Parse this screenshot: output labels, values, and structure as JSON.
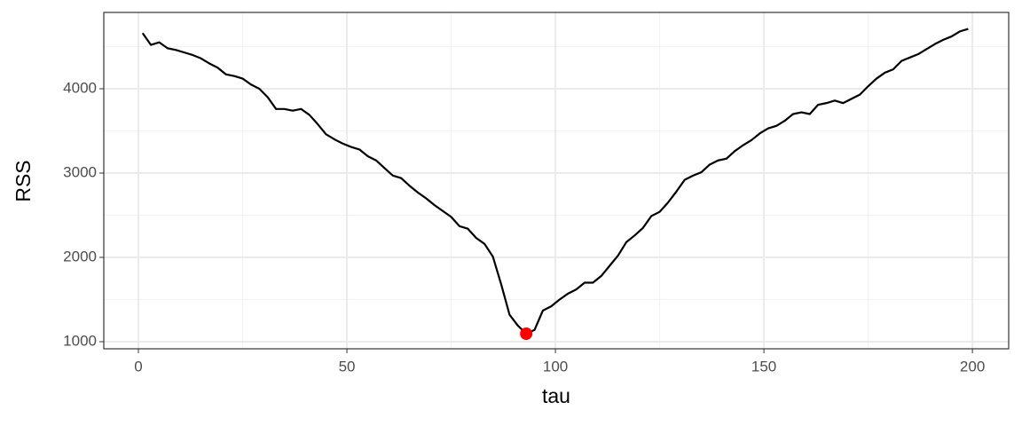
{
  "chart_data": {
    "type": "line",
    "x_label": "tau",
    "y_label": "RSS",
    "x": [
      1,
      3,
      5,
      7,
      9,
      11,
      13,
      15,
      17,
      19,
      21,
      23,
      25,
      27,
      29,
      31,
      33,
      35,
      37,
      39,
      41,
      43,
      45,
      47,
      49,
      51,
      53,
      55,
      57,
      59,
      61,
      63,
      65,
      67,
      69,
      71,
      73,
      75,
      77,
      79,
      81,
      83,
      85,
      87,
      89,
      91,
      93,
      95,
      97,
      99,
      101,
      103,
      105,
      107,
      109,
      111,
      113,
      115,
      117,
      119,
      121,
      123,
      125,
      127,
      129,
      131,
      133,
      135,
      137,
      139,
      141,
      143,
      145,
      147,
      149,
      151,
      153,
      155,
      157,
      159,
      161,
      163,
      165,
      167,
      169,
      171,
      173,
      175,
      177,
      179,
      181,
      183,
      185,
      187,
      189,
      191,
      193,
      195,
      197,
      199
    ],
    "series": [
      {
        "color": "#000000",
        "values": [
          4660,
          4520,
          4550,
          4480,
          4460,
          4430,
          4400,
          4360,
          4300,
          4250,
          4170,
          4150,
          4120,
          4050,
          4000,
          3900,
          3760,
          3760,
          3740,
          3760,
          3690,
          3580,
          3460,
          3400,
          3350,
          3310,
          3280,
          3200,
          3150,
          3060,
          2970,
          2940,
          2850,
          2770,
          2700,
          2620,
          2550,
          2480,
          2370,
          2340,
          2230,
          2160,
          2010,
          1680,
          1320,
          1190,
          1095,
          1140,
          1370,
          1420,
          1500,
          1570,
          1620,
          1700,
          1700,
          1780,
          1900,
          2020,
          2180,
          2260,
          2350,
          2490,
          2540,
          2650,
          2780,
          2920,
          2970,
          3010,
          3100,
          3150,
          3170,
          3260,
          3330,
          3390,
          3470,
          3530,
          3560,
          3620,
          3700,
          3720,
          3700,
          3810,
          3830,
          3860,
          3830,
          3880,
          3930,
          4030,
          4120,
          4190,
          4230,
          4330,
          4370,
          4410,
          4470,
          4530,
          4580,
          4620,
          4680,
          4710
        ]
      }
    ],
    "point": {
      "color": "#ff0000",
      "x": 93,
      "value": 1095
    },
    "xlim": [
      -8.3,
      208.7
    ],
    "ylim": [
      916,
      4905
    ],
    "xticks": [
      0,
      50,
      100,
      150,
      200
    ],
    "yticks": [
      1000,
      2000,
      3000,
      4000
    ],
    "xminor": [
      25,
      75,
      125,
      175
    ],
    "yminor": [
      1500,
      2500,
      3500,
      4500
    ],
    "grid": true
  }
}
